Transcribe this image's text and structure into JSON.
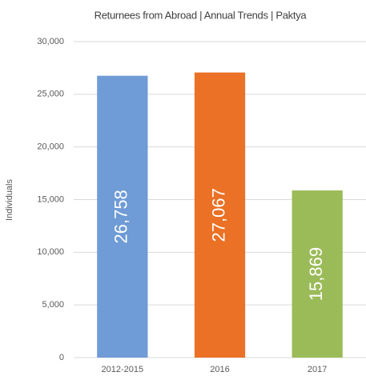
{
  "chart_data": {
    "type": "bar",
    "title": "Returnees from Abroad | Annual Trends | Paktya",
    "y_label": "Individuals",
    "categories": [
      "2012-2015",
      "2016",
      "2017"
    ],
    "values": [
      26758,
      27067,
      15869
    ],
    "value_labels": [
      "26,758",
      "27,067",
      "15,869"
    ],
    "colors": [
      "#6f9bd6",
      "#ea7125",
      "#9bbb59"
    ],
    "ylim": [
      0,
      30000
    ],
    "yticks": [
      0,
      {
        "value": 5000,
        "label": "5,000"
      },
      {
        "value": 10000,
        "label": "10,000"
      },
      {
        "value": 15000,
        "label": "15,000"
      },
      {
        "value": 20000,
        "label": "20,000"
      },
      {
        "value": 25000,
        "label": "25,000"
      },
      {
        "value": 30000,
        "label": "30,000"
      }
    ],
    "grid": true
  }
}
